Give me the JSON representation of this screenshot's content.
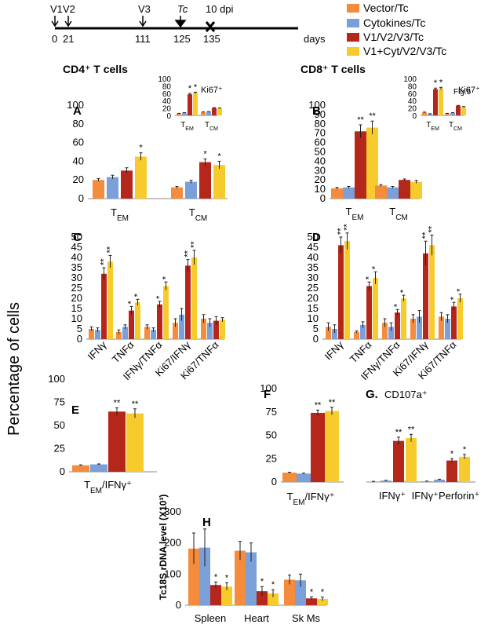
{
  "timeline": {
    "events": [
      {
        "label": "V1",
        "day": "0"
      },
      {
        "label": "V2",
        "day": "21"
      },
      {
        "label": "V3",
        "day": "111"
      },
      {
        "label": "Tc",
        "day": "125"
      },
      {
        "label": "10 dpi",
        "day": "135"
      }
    ],
    "unit": "days"
  },
  "legend": [
    {
      "label": "Vector/Tc",
      "color": "#f58b3c"
    },
    {
      "label": "Cytokines/Tc",
      "color": "#7b9fd8"
    },
    {
      "label": "V1/V2/V3/Tc",
      "color": "#b5261b"
    },
    {
      "label": "V1+Cyt/V2/V3/Tc",
      "color": "#f7cb2c"
    }
  ],
  "figure": {
    "fig_label": "Fig.5",
    "cd4_title": "CD4⁺ T cells",
    "cd8_title": "CD8⁺ T cells",
    "shared_ylabel": "Percentage of cells"
  },
  "chart_data": [
    {
      "id": "A",
      "type": "bar",
      "panel_label": "A",
      "categories": [
        "TEM",
        "TCM"
      ],
      "series": [
        {
          "name": "Vector/Tc",
          "values": [
            20,
            12
          ],
          "errors": [
            1.5,
            1
          ]
        },
        {
          "name": "Cytokines/Tc",
          "values": [
            23,
            18
          ],
          "errors": [
            2,
            1.5
          ]
        },
        {
          "name": "V1/V2/V3/Tc",
          "values": [
            30,
            39
          ],
          "errors": [
            3,
            3.5
          ]
        },
        {
          "name": "V1+Cyt/V2/V3/Tc",
          "values": [
            45,
            36
          ],
          "errors": [
            4,
            4
          ]
        }
      ],
      "stars": [
        [
          "",
          ""
        ],
        [
          "",
          ""
        ],
        [
          "",
          "*"
        ],
        [
          "*",
          "*"
        ]
      ],
      "ylim": [
        0,
        100
      ],
      "yticks": [
        0,
        20,
        40,
        60,
        80,
        100
      ]
    },
    {
      "id": "A_inset",
      "type": "bar",
      "panel_label": "Ki67⁺",
      "categories": [
        "TEM",
        "TCM"
      ],
      "series": [
        {
          "name": "Vector/Tc",
          "values": [
            5,
            9
          ],
          "errors": [
            0.5,
            0.5
          ]
        },
        {
          "name": "Cytokines/Tc",
          "values": [
            7,
            10
          ],
          "errors": [
            0.5,
            0.5
          ]
        },
        {
          "name": "V1/V2/V3/Tc",
          "values": [
            57,
            20
          ],
          "errors": [
            2.5,
            1
          ]
        },
        {
          "name": "V1+Cyt/V2/V3/Tc",
          "values": [
            61,
            19
          ],
          "errors": [
            2,
            1
          ]
        }
      ],
      "stars": [
        [
          "",
          ""
        ],
        [
          "",
          ""
        ],
        [
          "*",
          ""
        ],
        [
          "*",
          ""
        ]
      ],
      "ylim": [
        0,
        100
      ],
      "yticks": [
        0,
        20,
        40,
        60,
        80,
        100
      ]
    },
    {
      "id": "B",
      "type": "bar",
      "panel_label": "B",
      "categories": [
        "TEM",
        "TCM"
      ],
      "series": [
        {
          "name": "Vector/Tc",
          "values": [
            11,
            14
          ],
          "errors": [
            1,
            1
          ]
        },
        {
          "name": "Cytokines/Tc",
          "values": [
            12,
            12
          ],
          "errors": [
            1,
            1
          ]
        },
        {
          "name": "V1/V2/V3/Tc",
          "values": [
            72,
            20
          ],
          "errors": [
            7,
            1
          ]
        },
        {
          "name": "V1+Cyt/V2/V3/Tc",
          "values": [
            76,
            18
          ],
          "errors": [
            7,
            1.5
          ]
        }
      ],
      "stars": [
        [
          "",
          ""
        ],
        [
          "",
          ""
        ],
        [
          "**",
          ""
        ],
        [
          "**",
          ""
        ]
      ],
      "ylim": [
        0,
        100
      ],
      "yticks": [
        0,
        10,
        20,
        30,
        40,
        50,
        60,
        70,
        80,
        90,
        100
      ]
    },
    {
      "id": "B_inset",
      "type": "bar",
      "panel_label": "Ki67⁺",
      "categories": [
        "TEM",
        "TCM"
      ],
      "series": [
        {
          "name": "Vector/Tc",
          "values": [
            8,
            5
          ],
          "errors": [
            1,
            0.5
          ]
        },
        {
          "name": "Cytokines/Tc",
          "values": [
            4,
            7
          ],
          "errors": [
            0.5,
            0.5
          ]
        },
        {
          "name": "V1/V2/V3/Tc",
          "values": [
            71,
            26
          ],
          "errors": [
            3,
            1
          ]
        },
        {
          "name": "V1+Cyt/V2/V3/Tc",
          "values": [
            73,
            23
          ],
          "errors": [
            3,
            1
          ]
        }
      ],
      "stars": [
        [
          "",
          ""
        ],
        [
          "",
          ""
        ],
        [
          "*",
          ""
        ],
        [
          "*",
          ""
        ]
      ],
      "ylim": [
        0,
        100
      ],
      "yticks": [
        0,
        20,
        40,
        60,
        80,
        100
      ]
    },
    {
      "id": "C",
      "type": "bar",
      "panel_label": "C",
      "categories": [
        "IFNγ",
        "TNFα",
        "IFNγ/TNFα",
        "Ki67/IFNγ",
        "Ki67/TNFα"
      ],
      "series": [
        {
          "name": "Vector/Tc",
          "values": [
            5,
            3.5,
            6,
            8,
            10
          ],
          "errors": [
            1,
            1,
            1,
            2,
            2
          ]
        },
        {
          "name": "Cytokines/Tc",
          "values": [
            4.5,
            6,
            4.5,
            12,
            8
          ],
          "errors": [
            1,
            1,
            1,
            3,
            2
          ]
        },
        {
          "name": "V1/V2/V3/Tc",
          "values": [
            32,
            14,
            17,
            36,
            9
          ],
          "errors": [
            3,
            2,
            1.5,
            3,
            2
          ]
        },
        {
          "name": "V1+Cyt/V2/V3/Tc",
          "values": [
            38,
            18,
            26,
            40,
            9.5
          ],
          "errors": [
            3,
            1.5,
            2,
            3.5,
            1
          ]
        }
      ],
      "stars": [
        [
          "",
          "",
          "",
          "",
          ""
        ],
        [
          "",
          "",
          "",
          "",
          ""
        ],
        [
          "**",
          "*",
          "*",
          "**",
          ""
        ],
        [
          "**",
          "*",
          "*",
          "**",
          ""
        ]
      ],
      "ylim": [
        0,
        50
      ],
      "yticks": [
        0,
        5,
        10,
        15,
        20,
        25,
        30,
        35,
        40,
        45,
        50
      ]
    },
    {
      "id": "D",
      "type": "bar",
      "panel_label": "D",
      "categories": [
        "IFNγ",
        "TNFα",
        "IFNγ/TNFα",
        "Ki67/IFNγ",
        "Ki67/TNFα"
      ],
      "series": [
        {
          "name": "Vector/Tc",
          "values": [
            6,
            3.5,
            8,
            10,
            11
          ],
          "errors": [
            2,
            0.5,
            2,
            2,
            2
          ]
        },
        {
          "name": "Cytokines/Tc",
          "values": [
            5,
            7,
            6,
            11,
            10
          ],
          "errors": [
            2,
            1.5,
            2,
            3,
            2
          ]
        },
        {
          "name": "V1/V2/V3/Tc",
          "values": [
            46,
            26,
            13,
            42,
            16
          ],
          "errors": [
            4,
            2,
            1.5,
            6,
            2
          ]
        },
        {
          "name": "V1+Cyt/V2/V3/Tc",
          "values": [
            48,
            30,
            20,
            46,
            20
          ],
          "errors": [
            4,
            3,
            1.5,
            5,
            2
          ]
        }
      ],
      "stars": [
        [
          "",
          "",
          "",
          "",
          ""
        ],
        [
          "",
          "",
          "",
          "",
          ""
        ],
        [
          "**",
          "*",
          "*",
          "**",
          "*"
        ],
        [
          "**",
          "*",
          "*",
          "**",
          "*"
        ]
      ],
      "ylim": [
        0,
        50
      ],
      "yticks": [
        0,
        5,
        10,
        15,
        20,
        25,
        30,
        35,
        40,
        45,
        50
      ]
    },
    {
      "id": "E",
      "type": "bar",
      "panel_label": "E",
      "categories": [
        "TEM/IFNγ⁺"
      ],
      "series": [
        {
          "name": "Vector/Tc",
          "values": [
            7
          ],
          "errors": [
            0.5
          ]
        },
        {
          "name": "Cytokines/Tc",
          "values": [
            8
          ],
          "errors": [
            0.5
          ]
        },
        {
          "name": "V1/V2/V3/Tc",
          "values": [
            65
          ],
          "errors": [
            4
          ]
        },
        {
          "name": "V1+Cyt/V2/V3/Tc",
          "values": [
            63
          ],
          "errors": [
            5
          ]
        }
      ],
      "stars": [
        [
          ""
        ],
        [
          ""
        ],
        [
          "**"
        ],
        [
          "**"
        ]
      ],
      "ylim": [
        0,
        100
      ],
      "yticks": [
        0,
        25,
        50,
        75,
        100
      ]
    },
    {
      "id": "F",
      "type": "bar",
      "panel_label": "F",
      "categories": [
        "TEM/IFNγ⁺"
      ],
      "series": [
        {
          "name": "Vector/Tc",
          "values": [
            10
          ],
          "errors": [
            0.5
          ]
        },
        {
          "name": "Cytokines/Tc",
          "values": [
            9
          ],
          "errors": [
            0.5
          ]
        },
        {
          "name": "V1/V2/V3/Tc",
          "values": [
            74
          ],
          "errors": [
            3
          ]
        },
        {
          "name": "V1+Cyt/V2/V3/Tc",
          "values": [
            76
          ],
          "errors": [
            4
          ]
        }
      ],
      "stars": [
        [
          ""
        ],
        [
          ""
        ],
        [
          "**"
        ],
        [
          "**"
        ]
      ],
      "ylim": [
        0,
        100
      ],
      "yticks": [
        0,
        25,
        50,
        75,
        100
      ]
    },
    {
      "id": "G",
      "type": "bar",
      "panel_label": "G.",
      "subtitle": "CD107a⁺",
      "categories": [
        "IFNγ⁺",
        "IFNγ⁺Perforin⁺"
      ],
      "series": [
        {
          "name": "Vector/Tc",
          "values": [
            0.5,
            0.8
          ],
          "errors": [
            0.2,
            0.2
          ]
        },
        {
          "name": "Cytokines/Tc",
          "values": [
            1.5,
            2.5
          ],
          "errors": [
            0.3,
            0.5
          ]
        },
        {
          "name": "V1/V2/V3/Tc",
          "values": [
            44,
            23
          ],
          "errors": [
            4,
            2
          ]
        },
        {
          "name": "V1+Cyt/V2/V3/Tc",
          "values": [
            47,
            27
          ],
          "errors": [
            4,
            2.5
          ]
        }
      ],
      "stars": [
        [
          "",
          ""
        ],
        [
          "",
          ""
        ],
        [
          "**",
          "*"
        ],
        [
          "**",
          "*"
        ]
      ],
      "ylim": [
        0,
        100
      ],
      "yticks": []
    },
    {
      "id": "H",
      "type": "bar",
      "panel_label": "H",
      "categories": [
        "Spleen",
        "Heart",
        "Sk Ms"
      ],
      "ylabel": "Tc18S rDNA level (X10³)",
      "series": [
        {
          "name": "Vector/Tc",
          "values": [
            182,
            175,
            82
          ],
          "errors": [
            50,
            30,
            15
          ]
        },
        {
          "name": "Cytokines/Tc",
          "values": [
            185,
            170,
            80
          ],
          "errors": [
            60,
            30,
            20
          ]
        },
        {
          "name": "V1/V2/V3/Tc",
          "values": [
            65,
            45,
            22
          ],
          "errors": [
            10,
            15,
            5
          ]
        },
        {
          "name": "V1+Cyt/V2/V3/Tc",
          "values": [
            60,
            38,
            20
          ],
          "errors": [
            12,
            12,
            6
          ]
        }
      ],
      "stars": [
        [
          "",
          "",
          ""
        ],
        [
          "",
          "",
          ""
        ],
        [
          "*",
          "*",
          "*"
        ],
        [
          "*",
          "*",
          "*"
        ]
      ],
      "ylim": [
        0,
        300
      ],
      "yticks": [
        0,
        100,
        200,
        300
      ]
    }
  ]
}
